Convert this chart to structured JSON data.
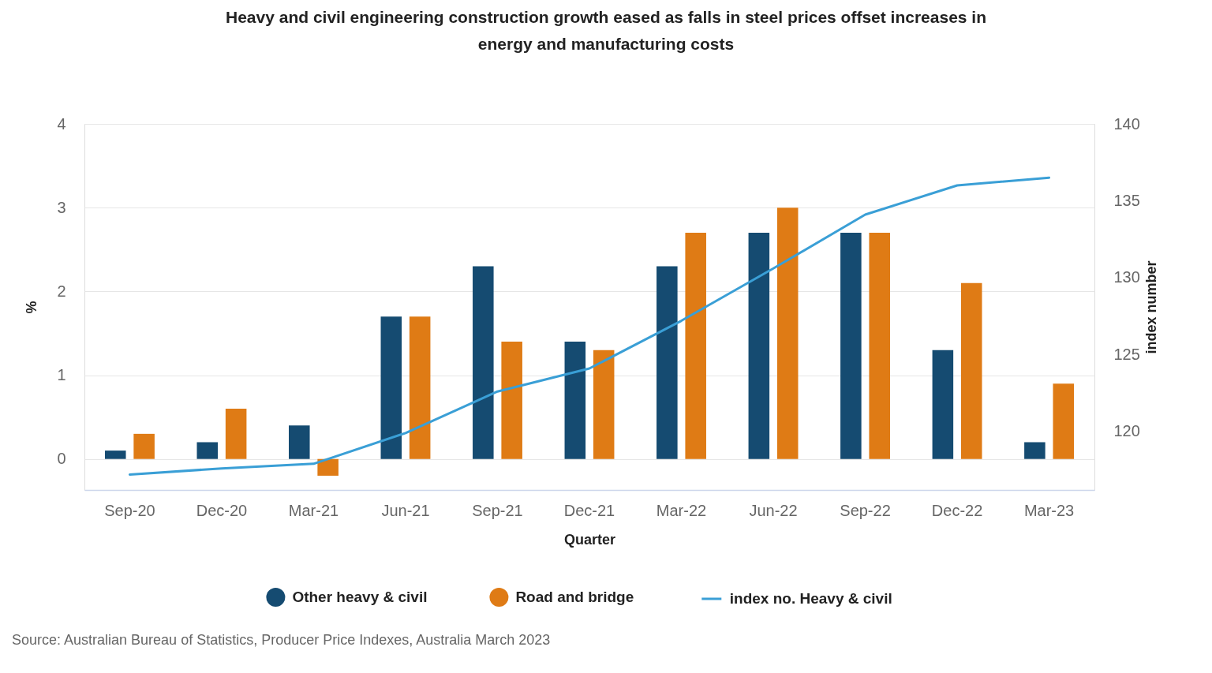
{
  "chart_data": {
    "type": "bar",
    "title": "Heavy and civil engineering construction growth eased as falls in steel prices offset increases in energy and manufacturing costs",
    "categories": [
      "Sep-20",
      "Dec-20",
      "Mar-21",
      "Jun-21",
      "Sep-21",
      "Dec-21",
      "Mar-22",
      "Jun-22",
      "Sep-22",
      "Dec-22",
      "Mar-23"
    ],
    "series": [
      {
        "name": "Other heavy & civil",
        "color": "#154b71",
        "values": [
          0.1,
          0.2,
          0.4,
          1.7,
          2.3,
          1.4,
          2.3,
          2.7,
          2.7,
          1.3,
          0.2
        ]
      },
      {
        "name": "Road and bridge",
        "color": "#df7b15",
        "values": [
          0.3,
          0.6,
          -0.2,
          1.7,
          1.4,
          1.3,
          2.7,
          3.0,
          2.7,
          2.1,
          0.9
        ]
      },
      {
        "name": "index no. Heavy & civil",
        "type": "line",
        "axis": "y2",
        "color": "#3a9fd6",
        "values": [
          117.2,
          117.6,
          117.9,
          119.9,
          122.6,
          124.1,
          127.2,
          130.6,
          134.1,
          136.0,
          136.5
        ]
      }
    ],
    "xlabel": "Quarter",
    "ylabel": "%",
    "y2label": "index number",
    "ylim": [
      -0.37,
      4
    ],
    "yticks": [
      0,
      1,
      2,
      3,
      4
    ],
    "y2lim": [
      116.2,
      140
    ],
    "y2ticks": [
      120,
      125,
      130,
      135,
      140
    ],
    "grid": "y",
    "legend": "bottom",
    "annotations": [
      "Source: Australian Bureau of Statistics, Producer Price Indexes, Australia March 2023"
    ]
  }
}
